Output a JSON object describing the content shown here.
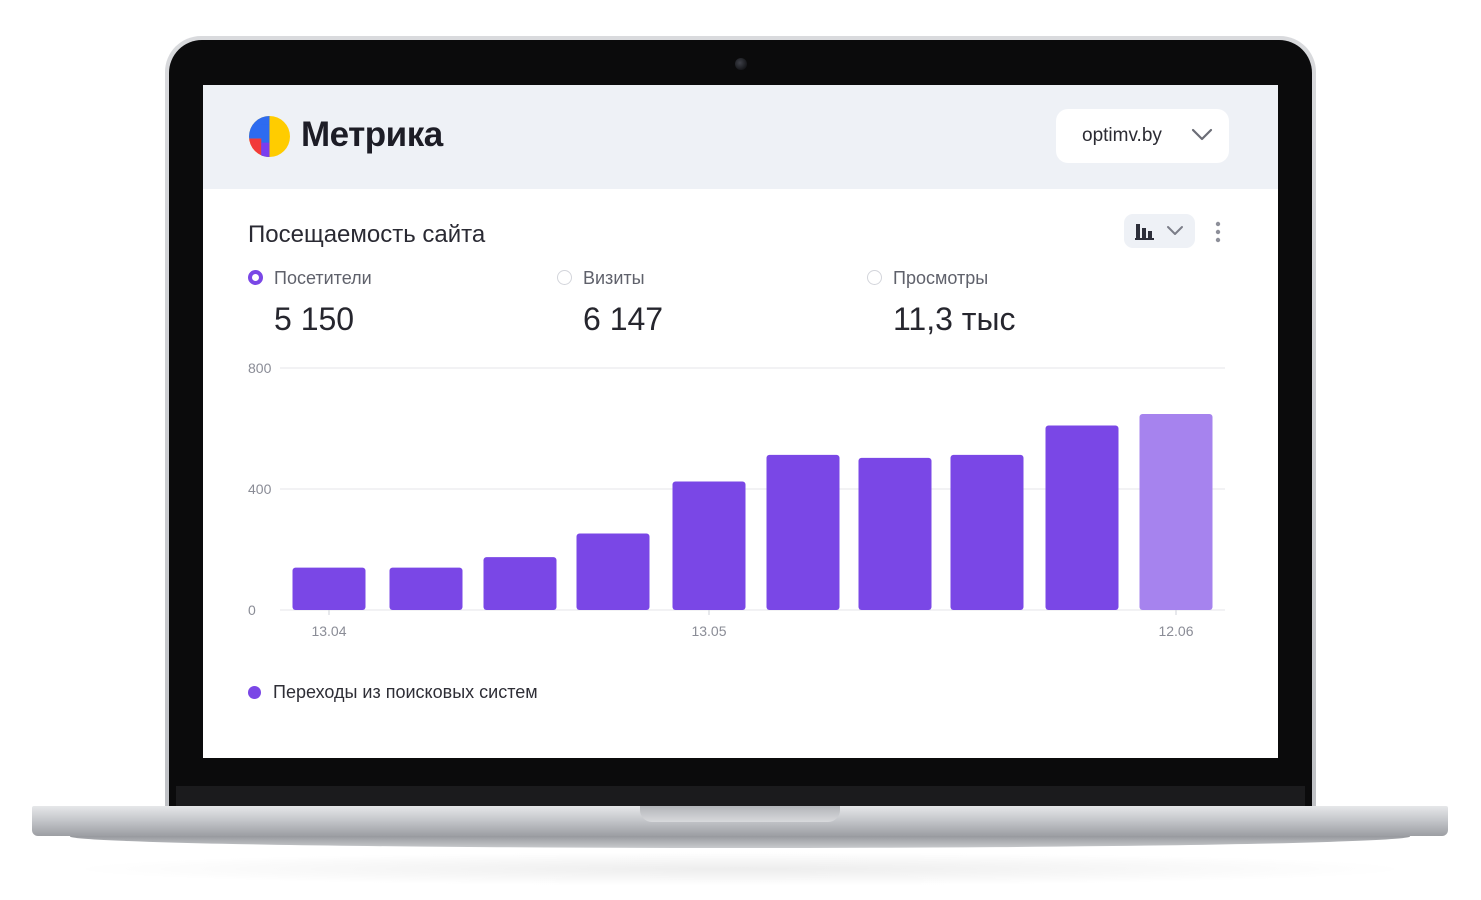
{
  "app": {
    "brand": "Метрика",
    "site": "optimv.by"
  },
  "widget": {
    "title": "Посещаемость сайта",
    "view_icon": "bar-chart-icon",
    "menu_icon": "more-vertical-icon"
  },
  "metrics": [
    {
      "label": "Посетители",
      "value": "5 150",
      "selected": true
    },
    {
      "label": "Визиты",
      "value": "6 147",
      "selected": false
    },
    {
      "label": "Просмотры",
      "value": "11,3 тыс",
      "selected": false
    }
  ],
  "colors": {
    "accent": "#7a47e6",
    "bar": "#7a47e6",
    "bar_current": "#a683ee",
    "topbar": "#eef1f6"
  },
  "chart_data": {
    "type": "bar",
    "ylim": [
      0,
      800
    ],
    "yticks": [
      "0",
      "400",
      "800"
    ],
    "xticks": [
      {
        "label": "13.04",
        "index": 0
      },
      {
        "label": "13.05",
        "index": 4
      },
      {
        "label": "12.06",
        "index": 9
      }
    ],
    "series": [
      {
        "name": "Переходы из поисковых систем",
        "values": [
          140,
          140,
          175,
          253,
          425,
          513,
          503,
          513,
          610,
          648
        ]
      }
    ],
    "current_period_index": 9,
    "grid": true,
    "legend": "bottom-left"
  }
}
